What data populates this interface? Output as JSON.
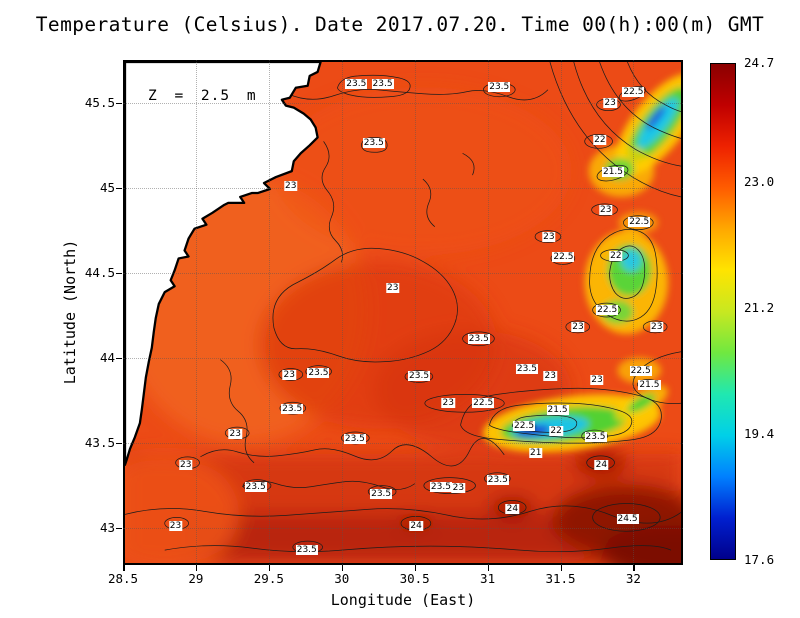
{
  "title": "Temperature (Celsius). Date 2017.07.20. Time 00(h):00(m) GMT",
  "chart_data": {
    "type": "heatmap",
    "title": "Temperature (Celsius). Date 2017.07.20. Time 00(h):00(m) GMT",
    "xlabel": "Longitude (East)",
    "ylabel": "Latitude (North)",
    "xlim": [
      28.5,
      32.34
    ],
    "ylim": [
      42.78,
      45.75
    ],
    "x_ticks": [
      "28.5",
      "29",
      "29.5",
      "30",
      "30.5",
      "31",
      "31.5",
      "32"
    ],
    "y_ticks": [
      "43",
      "43.5",
      "44",
      "44.5",
      "45",
      "45.5"
    ],
    "depth_annotation": "Z = 2.5 m",
    "grid": "dotted",
    "contour_interval": 0.5,
    "colorbar": {
      "min": 17.6,
      "max": 24.7,
      "tick_labels": [
        "24.7",
        "23.0",
        "21.2",
        "19.4",
        "17.6"
      ],
      "palette": [
        "#00008b",
        "#0020d0",
        "#0080ff",
        "#00d0e8",
        "#20e8b0",
        "#70e840",
        "#c8e820",
        "#ffe400",
        "#ffa800",
        "#ff5c00",
        "#ee2200",
        "#c00000",
        "#8b0000"
      ]
    },
    "contour_labels": [
      {
        "v": "23.5",
        "lon": 30.1,
        "lat": 45.61
      },
      {
        "v": "23.5",
        "lon": 30.28,
        "lat": 45.61
      },
      {
        "v": "23.5",
        "lon": 31.08,
        "lat": 45.59
      },
      {
        "v": "22.5",
        "lon": 32.0,
        "lat": 45.56
      },
      {
        "v": "23",
        "lon": 31.84,
        "lat": 45.5
      },
      {
        "v": "22",
        "lon": 31.77,
        "lat": 45.28
      },
      {
        "v": "23.5",
        "lon": 30.22,
        "lat": 45.26
      },
      {
        "v": "21.5",
        "lon": 31.86,
        "lat": 45.09
      },
      {
        "v": "23",
        "lon": 29.65,
        "lat": 45.01
      },
      {
        "v": "23",
        "lon": 31.81,
        "lat": 44.87
      },
      {
        "v": "22.5",
        "lon": 32.04,
        "lat": 44.8
      },
      {
        "v": "23",
        "lon": 31.42,
        "lat": 44.71
      },
      {
        "v": "22.5",
        "lon": 31.52,
        "lat": 44.59
      },
      {
        "v": "22",
        "lon": 31.88,
        "lat": 44.6
      },
      {
        "v": "23",
        "lon": 30.35,
        "lat": 44.41
      },
      {
        "v": "22.5",
        "lon": 31.82,
        "lat": 44.28
      },
      {
        "v": "23",
        "lon": 31.62,
        "lat": 44.18
      },
      {
        "v": "23",
        "lon": 32.16,
        "lat": 44.18
      },
      {
        "v": "23.5",
        "lon": 30.94,
        "lat": 44.11
      },
      {
        "v": "23",
        "lon": 29.64,
        "lat": 43.9
      },
      {
        "v": "23.5",
        "lon": 29.84,
        "lat": 43.91
      },
      {
        "v": "23.5",
        "lon": 30.53,
        "lat": 43.89
      },
      {
        "v": "23.5",
        "lon": 31.27,
        "lat": 43.93
      },
      {
        "v": "23",
        "lon": 31.43,
        "lat": 43.89
      },
      {
        "v": "22.5",
        "lon": 32.05,
        "lat": 43.92
      },
      {
        "v": "23",
        "lon": 31.75,
        "lat": 43.87
      },
      {
        "v": "21.5",
        "lon": 32.11,
        "lat": 43.84
      },
      {
        "v": "23.5",
        "lon": 29.66,
        "lat": 43.7
      },
      {
        "v": "23",
        "lon": 30.73,
        "lat": 43.73
      },
      {
        "v": "22.5",
        "lon": 30.97,
        "lat": 43.73
      },
      {
        "v": "21.5",
        "lon": 31.48,
        "lat": 43.69
      },
      {
        "v": "22.5",
        "lon": 31.25,
        "lat": 43.6
      },
      {
        "v": "22",
        "lon": 31.47,
        "lat": 43.57
      },
      {
        "v": "21",
        "lon": 31.33,
        "lat": 43.44
      },
      {
        "v": "23.5",
        "lon": 31.74,
        "lat": 43.53
      },
      {
        "v": "24",
        "lon": 31.78,
        "lat": 43.37
      },
      {
        "v": "23.5",
        "lon": 30.09,
        "lat": 43.52
      },
      {
        "v": "23",
        "lon": 29.27,
        "lat": 43.55
      },
      {
        "v": "23",
        "lon": 28.93,
        "lat": 43.37
      },
      {
        "v": "23.5",
        "lon": 29.41,
        "lat": 43.24
      },
      {
        "v": "23.5",
        "lon": 30.27,
        "lat": 43.2
      },
      {
        "v": "23.5",
        "lon": 30.68,
        "lat": 43.24
      },
      {
        "v": "23",
        "lon": 30.8,
        "lat": 43.23
      },
      {
        "v": "23.5",
        "lon": 31.07,
        "lat": 43.28
      },
      {
        "v": "24",
        "lon": 31.17,
        "lat": 43.11
      },
      {
        "v": "23",
        "lon": 28.86,
        "lat": 43.01
      },
      {
        "v": "24",
        "lon": 30.51,
        "lat": 43.01
      },
      {
        "v": "24.5",
        "lon": 31.96,
        "lat": 43.05
      },
      {
        "v": "23.5",
        "lon": 29.76,
        "lat": 42.87
      }
    ]
  }
}
